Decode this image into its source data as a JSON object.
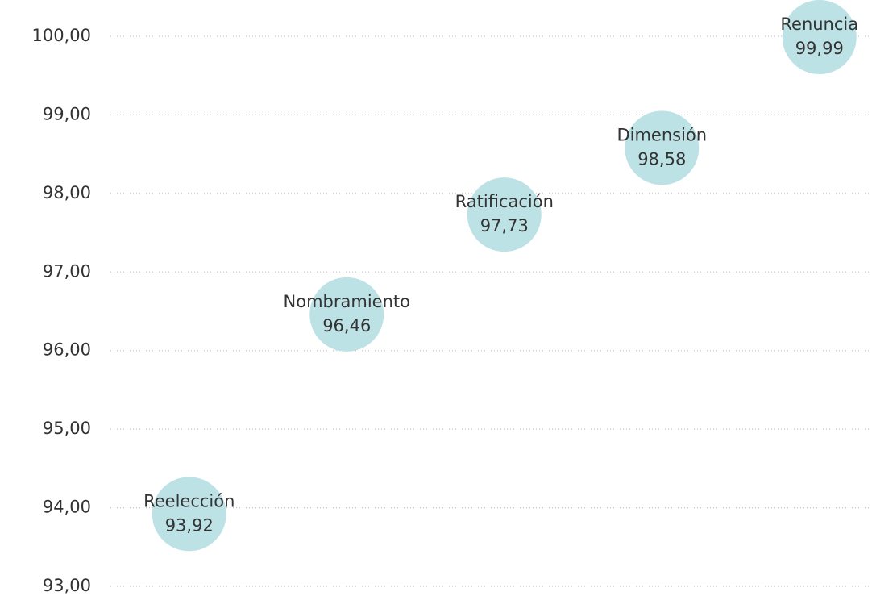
{
  "chart_data": {
    "type": "scatter",
    "categories": [
      "Reelección",
      "Nombramiento",
      "Ratificación",
      "Dimensión",
      "Renuncia"
    ],
    "values": [
      93.92,
      96.46,
      97.73,
      98.58,
      99.99
    ],
    "value_labels": [
      "93,92",
      "96,46",
      "97,73",
      "98,58",
      "99,99"
    ],
    "color": "#bde2e5",
    "ylim": [
      93,
      100
    ],
    "yticks": [
      {
        "value": 93,
        "label": "93,00"
      },
      {
        "value": 94,
        "label": "94,00"
      },
      {
        "value": 95,
        "label": "95,00"
      },
      {
        "value": 96,
        "label": "96,00"
      },
      {
        "value": 97,
        "label": "97,00"
      },
      {
        "value": 98,
        "label": "98,00"
      },
      {
        "value": 99,
        "label": "99,00"
      },
      {
        "value": 100,
        "label": "100,00"
      }
    ],
    "grid": true
  }
}
